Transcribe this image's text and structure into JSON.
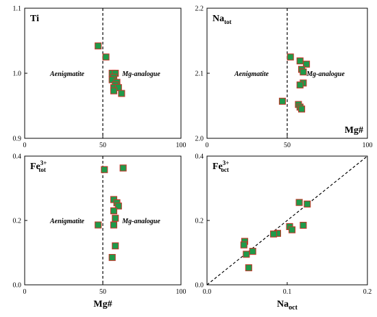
{
  "colors": {
    "marker_fill": "#1f9a4a",
    "marker_stroke": "#c0392b"
  },
  "chart_data": [
    {
      "id": "ti",
      "type": "scatter",
      "panel_label": {
        "main": "Ti",
        "sup": "",
        "sub": ""
      },
      "xlim": [
        0,
        100
      ],
      "ylim": [
        0.9,
        1.1
      ],
      "xticks": [
        "0",
        "50",
        "100"
      ],
      "yticks": [
        "0.9",
        "1.0",
        "1.1"
      ],
      "xlabel": "",
      "xlabel_sub": "",
      "divider_x": 50,
      "regions": {
        "left": "Aenigmatite",
        "right": "Mg-analogue"
      },
      "points": [
        {
          "x": 47,
          "y": 1.042
        },
        {
          "x": 52,
          "y": 1.025
        },
        {
          "x": 56,
          "y": 1.0
        },
        {
          "x": 58,
          "y": 1.0
        },
        {
          "x": 57,
          "y": 0.994
        },
        {
          "x": 56,
          "y": 0.99
        },
        {
          "x": 59,
          "y": 0.986
        },
        {
          "x": 58,
          "y": 0.982
        },
        {
          "x": 57,
          "y": 0.978
        },
        {
          "x": 60,
          "y": 0.978
        },
        {
          "x": 57,
          "y": 0.973
        },
        {
          "x": 62,
          "y": 0.969
        }
      ]
    },
    {
      "id": "natot",
      "type": "scatter",
      "panel_label": {
        "main": "Na",
        "sup": "",
        "sub": "tot"
      },
      "xlim": [
        0,
        100
      ],
      "ylim": [
        2.0,
        2.2
      ],
      "xticks": [
        "0",
        "50",
        "100"
      ],
      "yticks": [
        "2.0",
        "2.1",
        "2.2"
      ],
      "xlabel": "Mg#",
      "xlabel_sub": "",
      "xlabel_inside": true,
      "divider_x": 50,
      "regions": {
        "left": "Aenigmatite",
        "right": "Mg-analogue"
      },
      "points": [
        {
          "x": 47,
          "y": 2.057
        },
        {
          "x": 52,
          "y": 2.125
        },
        {
          "x": 58,
          "y": 2.119
        },
        {
          "x": 62,
          "y": 2.114
        },
        {
          "x": 59,
          "y": 2.106
        },
        {
          "x": 60,
          "y": 2.102
        },
        {
          "x": 60,
          "y": 2.085
        },
        {
          "x": 58,
          "y": 2.082
        },
        {
          "x": 57,
          "y": 2.052
        },
        {
          "x": 58,
          "y": 2.048
        },
        {
          "x": 59,
          "y": 2.045
        }
      ]
    },
    {
      "id": "fe3tot",
      "type": "scatter",
      "panel_label": {
        "main": "Fe",
        "sup": "3+",
        "sub": "tot"
      },
      "xlim": [
        0,
        100
      ],
      "ylim": [
        0.0,
        0.4
      ],
      "xticks": [
        "0",
        "50",
        "100"
      ],
      "yticks": [
        "0.0",
        "0.2",
        "0.4"
      ],
      "xlabel": "Mg#",
      "xlabel_sub": "",
      "divider_x": 50,
      "regions": {
        "left": "Aenigmatite",
        "right": "Mg-analogue"
      },
      "points": [
        {
          "x": 51,
          "y": 0.358
        },
        {
          "x": 63,
          "y": 0.363
        },
        {
          "x": 57,
          "y": 0.265
        },
        {
          "x": 59,
          "y": 0.255
        },
        {
          "x": 60,
          "y": 0.245
        },
        {
          "x": 57,
          "y": 0.23
        },
        {
          "x": 58,
          "y": 0.207
        },
        {
          "x": 47,
          "y": 0.186
        },
        {
          "x": 57,
          "y": 0.186
        },
        {
          "x": 58,
          "y": 0.121
        },
        {
          "x": 56,
          "y": 0.085
        }
      ]
    },
    {
      "id": "fe3oct",
      "type": "scatter",
      "panel_label": {
        "main": "Fe",
        "sup": "3+",
        "sub": "oct"
      },
      "xlim": [
        0.0,
        0.2
      ],
      "ylim": [
        0.0,
        0.4
      ],
      "xticks": [
        "0.0",
        "0.1",
        "0.2"
      ],
      "yticks": [
        "0.0",
        "0.2",
        "0.4"
      ],
      "xlabel": "Na",
      "xlabel_sub": "oct",
      "divider_line": {
        "from": [
          0.0,
          0.0
        ],
        "to": [
          0.2,
          0.4
        ]
      },
      "regions": {
        "left": "",
        "right": ""
      },
      "points": [
        {
          "x": 0.115,
          "y": 0.256
        },
        {
          "x": 0.125,
          "y": 0.251
        },
        {
          "x": 0.12,
          "y": 0.185
        },
        {
          "x": 0.103,
          "y": 0.181
        },
        {
          "x": 0.106,
          "y": 0.171
        },
        {
          "x": 0.088,
          "y": 0.16
        },
        {
          "x": 0.083,
          "y": 0.158
        },
        {
          "x": 0.047,
          "y": 0.135
        },
        {
          "x": 0.046,
          "y": 0.124
        },
        {
          "x": 0.057,
          "y": 0.104
        },
        {
          "x": 0.049,
          "y": 0.095
        },
        {
          "x": 0.052,
          "y": 0.053
        }
      ]
    }
  ]
}
